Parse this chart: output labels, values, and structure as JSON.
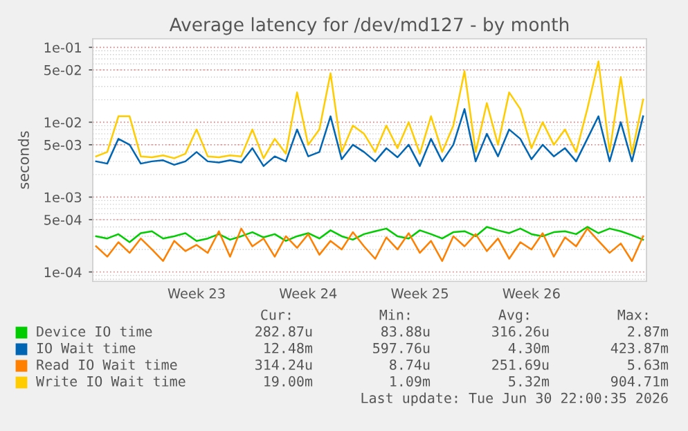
{
  "chart_data": {
    "type": "line",
    "title": "Average latency for /dev/md127 - by month",
    "ylabel": "seconds",
    "log": "y",
    "ylim": [
      7.5e-05,
      0.13
    ],
    "yticks": [
      {
        "value": 0.0001,
        "label": "1e-04"
      },
      {
        "value": 0.0005,
        "label": "5e-04"
      },
      {
        "value": 0.001,
        "label": "1e-03"
      },
      {
        "value": 0.005,
        "label": "5e-03"
      },
      {
        "value": 0.01,
        "label": "1e-02"
      },
      {
        "value": 0.05,
        "label": "5e-02"
      },
      {
        "value": 0.1,
        "label": "1e-01"
      }
    ],
    "grid": "y",
    "legend": "bottom",
    "marker": "none",
    "line_style": "solid",
    "categories": [
      null,
      null,
      null,
      null,
      null,
      null,
      null,
      null,
      null,
      "Week 23",
      null,
      null,
      null,
      null,
      null,
      null,
      null,
      null,
      null,
      "Week 24",
      null,
      null,
      null,
      null,
      null,
      null,
      null,
      null,
      null,
      "Week 25",
      null,
      null,
      null,
      null,
      null,
      null,
      null,
      null,
      null,
      "Week 26",
      null,
      null,
      null,
      null,
      null,
      null,
      null,
      null,
      null,
      null
    ],
    "series": [
      {
        "name": "Device IO time",
        "color": "#00cc00",
        "values": [
          0.0003,
          0.00028,
          0.00032,
          0.00025,
          0.00033,
          0.00035,
          0.00028,
          0.0003,
          0.00033,
          0.00026,
          0.00028,
          0.00032,
          0.00027,
          0.0003,
          0.00034,
          0.00029,
          0.00032,
          0.00026,
          0.0003,
          0.00033,
          0.00028,
          0.00036,
          0.0003,
          0.00027,
          0.00032,
          0.00035,
          0.00038,
          0.0003,
          0.00028,
          0.00036,
          0.00032,
          0.00028,
          0.00034,
          0.00035,
          0.0003,
          0.0004,
          0.00036,
          0.00033,
          0.00038,
          0.00032,
          0.0003,
          0.00034,
          0.00035,
          0.00032,
          0.0004,
          0.00033,
          0.00038,
          0.00035,
          0.00031,
          0.00027
        ]
      },
      {
        "name": "IO Wait time",
        "color": "#0066b3",
        "values": [
          0.003,
          0.0028,
          0.006,
          0.005,
          0.0028,
          0.003,
          0.0031,
          0.0027,
          0.003,
          0.004,
          0.003,
          0.0029,
          0.0031,
          0.0029,
          0.0045,
          0.0026,
          0.0035,
          0.003,
          0.008,
          0.0035,
          0.004,
          0.012,
          0.0032,
          0.005,
          0.004,
          0.003,
          0.0045,
          0.0034,
          0.005,
          0.0026,
          0.006,
          0.003,
          0.005,
          0.015,
          0.003,
          0.007,
          0.0035,
          0.008,
          0.006,
          0.0032,
          0.005,
          0.0035,
          0.0045,
          0.003,
          0.006,
          0.012,
          0.003,
          0.01,
          0.003,
          0.012
        ]
      },
      {
        "name": "Read IO Wait time",
        "color": "#ff8000",
        "values": [
          0.00022,
          0.00016,
          0.00025,
          0.00018,
          0.00028,
          0.0002,
          0.00014,
          0.00026,
          0.00019,
          0.00023,
          0.00018,
          0.00035,
          0.00016,
          0.00038,
          0.00022,
          0.00028,
          0.00016,
          0.0003,
          0.00021,
          0.00032,
          0.00017,
          0.00026,
          0.0002,
          0.00034,
          0.00022,
          0.00015,
          0.00029,
          0.0002,
          0.00033,
          0.00018,
          0.00026,
          0.00014,
          0.0003,
          0.00022,
          0.00032,
          0.00019,
          0.00028,
          0.00015,
          0.00025,
          0.0002,
          0.00033,
          0.00016,
          0.00029,
          0.00022,
          0.00038,
          0.00026,
          0.00018,
          0.00024,
          0.00014,
          0.0003
        ]
      },
      {
        "name": "Write IO Wait time",
        "color": "#ffcc00",
        "values": [
          0.0035,
          0.004,
          0.012,
          0.012,
          0.0035,
          0.0034,
          0.0036,
          0.0033,
          0.0038,
          0.008,
          0.0035,
          0.0034,
          0.0036,
          0.0035,
          0.008,
          0.0033,
          0.006,
          0.0038,
          0.025,
          0.005,
          0.008,
          0.045,
          0.004,
          0.009,
          0.007,
          0.004,
          0.009,
          0.0045,
          0.01,
          0.0038,
          0.012,
          0.004,
          0.009,
          0.048,
          0.004,
          0.018,
          0.005,
          0.025,
          0.015,
          0.0045,
          0.01,
          0.005,
          0.008,
          0.004,
          0.015,
          0.065,
          0.004,
          0.04,
          0.0038,
          0.02
        ]
      }
    ],
    "annotations": [
      "Cur:",
      "Min:",
      "Avg:",
      "Max:",
      "282.87u",
      "83.88u",
      "316.26u",
      "2.87m",
      "12.48m",
      "597.76u",
      "4.30m",
      "423.87m",
      "314.24u",
      "8.74u",
      "251.69u",
      "5.63m",
      "19.00m",
      "1.09m",
      "5.32m",
      "904.71m",
      "Last update: Tue Jun 30 22:00:35 2026"
    ]
  }
}
